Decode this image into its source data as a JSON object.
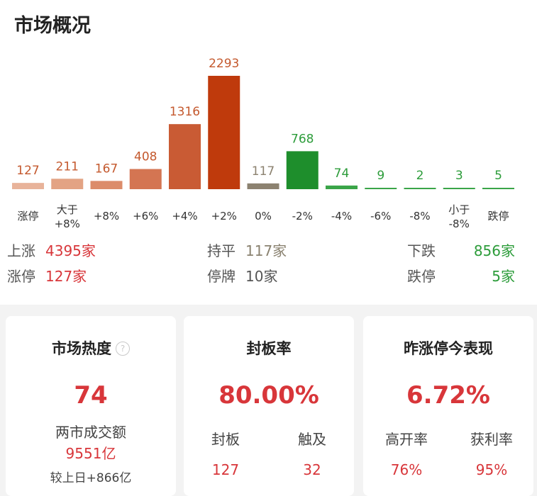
{
  "page": {
    "title": "市场概况"
  },
  "chart_data": {
    "type": "bar",
    "categories": [
      [
        "涨停"
      ],
      [
        "大于",
        "+8%"
      ],
      [
        "+8%"
      ],
      [
        "+6%"
      ],
      [
        "+4%"
      ],
      [
        "+2%"
      ],
      [
        "0%"
      ],
      [
        "-2%"
      ],
      [
        "-4%"
      ],
      [
        "-6%"
      ],
      [
        "-8%"
      ],
      [
        "小于",
        "-8%"
      ],
      [
        "跌停"
      ]
    ],
    "values": [
      127,
      211,
      167,
      408,
      1316,
      2293,
      117,
      768,
      74,
      9,
      2,
      3,
      5
    ],
    "bar_colors": [
      "#e8b39a",
      "#e3a384",
      "#dc8c6a",
      "#d47552",
      "#c95b34",
      "#bf3a0c",
      "#8c8270",
      "#1e8e2c",
      "#3aa548",
      "#3aa548",
      "#3aa548",
      "#3aa548",
      "#3aa548"
    ],
    "label_colors": [
      "#c4592e",
      "#c4592e",
      "#c4592e",
      "#c4592e",
      "#c4592e",
      "#c4592e",
      "#8c8270",
      "#2c9c3a",
      "#2c9c3a",
      "#2c9c3a",
      "#2c9c3a",
      "#2c9c3a",
      "#2c9c3a"
    ],
    "ylim": [
      0,
      2293
    ]
  },
  "summary": {
    "rise_label": "上涨",
    "rise_value": "4395家",
    "flat_label": "持平",
    "flat_value": "117家",
    "fall_label": "下跌",
    "fall_value": "856家",
    "limit_up_label": "涨停",
    "limit_up_value": "127家",
    "suspend_label": "停牌",
    "suspend_value": "10家",
    "limit_down_label": "跌停",
    "limit_down_value": "5家"
  },
  "cards": {
    "heat": {
      "title": "市场热度",
      "help_icon": "question-icon",
      "value": "74",
      "turnover_label": "两市成交额",
      "turnover_value": "9551亿",
      "change_text": "较上日+866亿"
    },
    "seal": {
      "title": "封板率",
      "value": "80.00%",
      "left_label": "封板",
      "left_value": "127",
      "right_label": "触及",
      "right_value": "32"
    },
    "yesterday": {
      "title": "昨涨停今表现",
      "value": "6.72%",
      "left_label": "高开率",
      "left_value": "76%",
      "right_label": "获利率",
      "right_value": "95%"
    }
  }
}
